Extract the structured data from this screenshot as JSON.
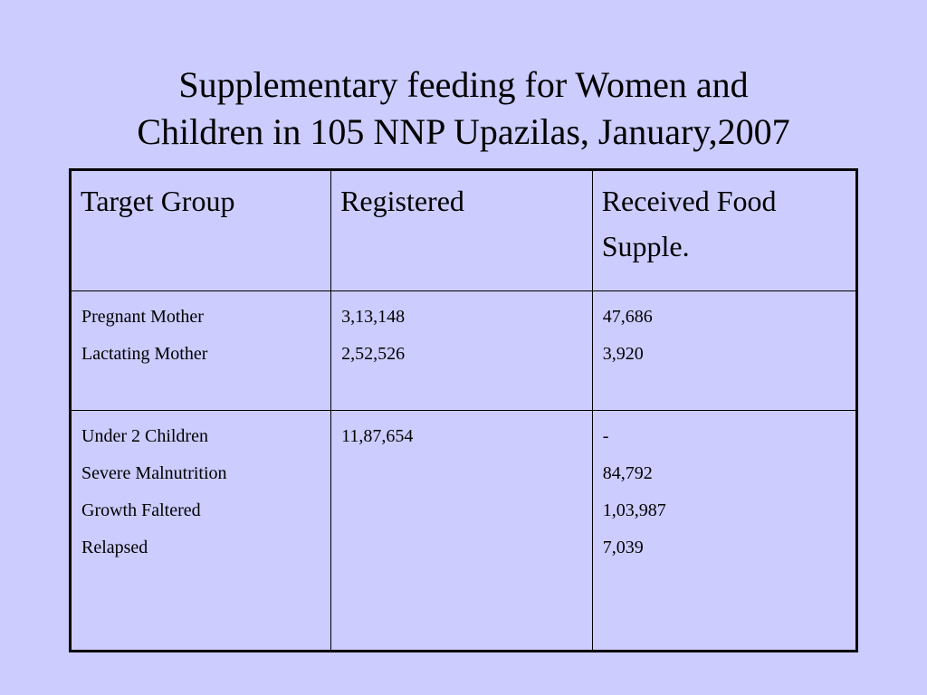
{
  "title": {
    "line1": "Supplementary feeding for Women and",
    "line2": "Children in 105 NNP Upazilas, January,2007"
  },
  "table": {
    "headers": {
      "target_group": "Target Group",
      "registered": "Registered",
      "received_line1": "Received Food",
      "received_line2": "Supple."
    },
    "rows": [
      {
        "groups": [
          "Pregnant Mother",
          "Lactating Mother"
        ],
        "registered": [
          "3,13,148",
          "2,52,526"
        ],
        "received": [
          "47,686",
          "3,920"
        ]
      },
      {
        "groups": [
          "Under 2 Children",
          "Severe Malnutrition",
          "Growth Faltered",
          "Relapsed"
        ],
        "registered": [
          "11,87,654"
        ],
        "received": [
          "-",
          "84,792",
          "1,03,987",
          "7,039"
        ]
      }
    ]
  }
}
